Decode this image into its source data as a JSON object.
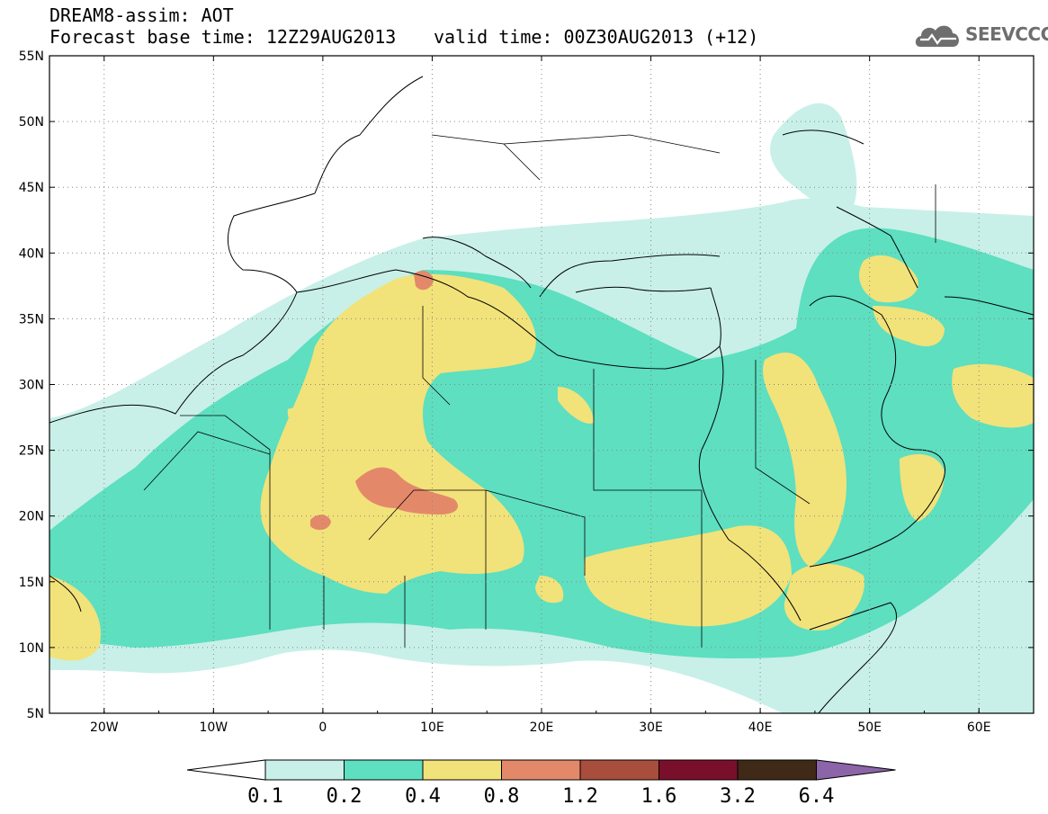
{
  "header": {
    "title_line1": "DREAM8-assim: AOT",
    "title_line2": "Forecast base time: 12Z29AUG2013",
    "valid_time": "valid time: 00Z30AUG2013 (+12)",
    "logo_text": "SEEVCCC",
    "logo_icon": "cloud-logo-icon"
  },
  "map": {
    "projection": "lat-lon",
    "lon_range": [
      -25,
      65
    ],
    "lat_range": [
      5,
      55
    ],
    "grid": "dotted",
    "lat_ticks": [
      "55N",
      "50N",
      "45N",
      "40N",
      "35N",
      "30N",
      "25N",
      "20N",
      "15N",
      "10N",
      "5N"
    ],
    "lon_ticks": [
      "20W",
      "10W",
      "0",
      "10E",
      "20E",
      "30E",
      "40E",
      "50E",
      "60E"
    ],
    "field": "AOT"
  },
  "colorbar": {
    "levels": [
      "0.1",
      "0.2",
      "0.4",
      "0.8",
      "1.2",
      "1.6",
      "3.2",
      "6.4"
    ],
    "colors": [
      "#c8f0e8",
      "#5ddfc0",
      "#f2e27a",
      "#e3896a",
      "#a84e3c",
      "#7a0f2c",
      "#3f2a17",
      "#8c64a8"
    ],
    "underflow_color": "#ffffff"
  }
}
